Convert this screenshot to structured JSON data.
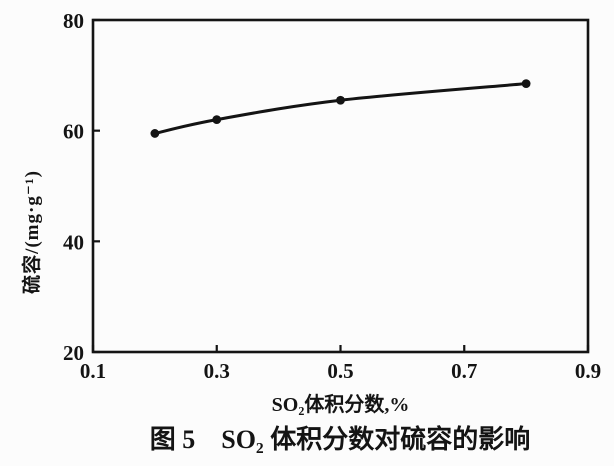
{
  "figure": {
    "caption": "图 5　SO₂ 体积分数对硫容的影响"
  },
  "chart_data": {
    "type": "line",
    "title": "",
    "xlabel": "SO₂体积分数,%",
    "ylabel": "硫容/(mg·g⁻¹)",
    "xlim": [
      0.1,
      0.9
    ],
    "ylim": [
      20,
      80
    ],
    "grid": false,
    "legend": "none",
    "line_color": "#141414",
    "marker": "filled-circle",
    "xticks": [
      {
        "value": 0.1,
        "label": "0.1"
      },
      {
        "value": 0.3,
        "label": "0.3"
      },
      {
        "value": 0.5,
        "label": "0.5"
      },
      {
        "value": 0.7,
        "label": "0.7"
      },
      {
        "value": 0.9,
        "label": "0.9"
      }
    ],
    "yticks": [
      {
        "value": 20,
        "label": "20"
      },
      {
        "value": 40,
        "label": "40"
      },
      {
        "value": 60,
        "label": "60"
      },
      {
        "value": 80,
        "label": "80"
      }
    ],
    "series": [
      {
        "name": "硫容",
        "points": [
          {
            "x": 0.2,
            "y": 59.5
          },
          {
            "x": 0.3,
            "y": 62.0
          },
          {
            "x": 0.5,
            "y": 65.5
          },
          {
            "x": 0.8,
            "y": 68.5
          }
        ]
      }
    ]
  }
}
